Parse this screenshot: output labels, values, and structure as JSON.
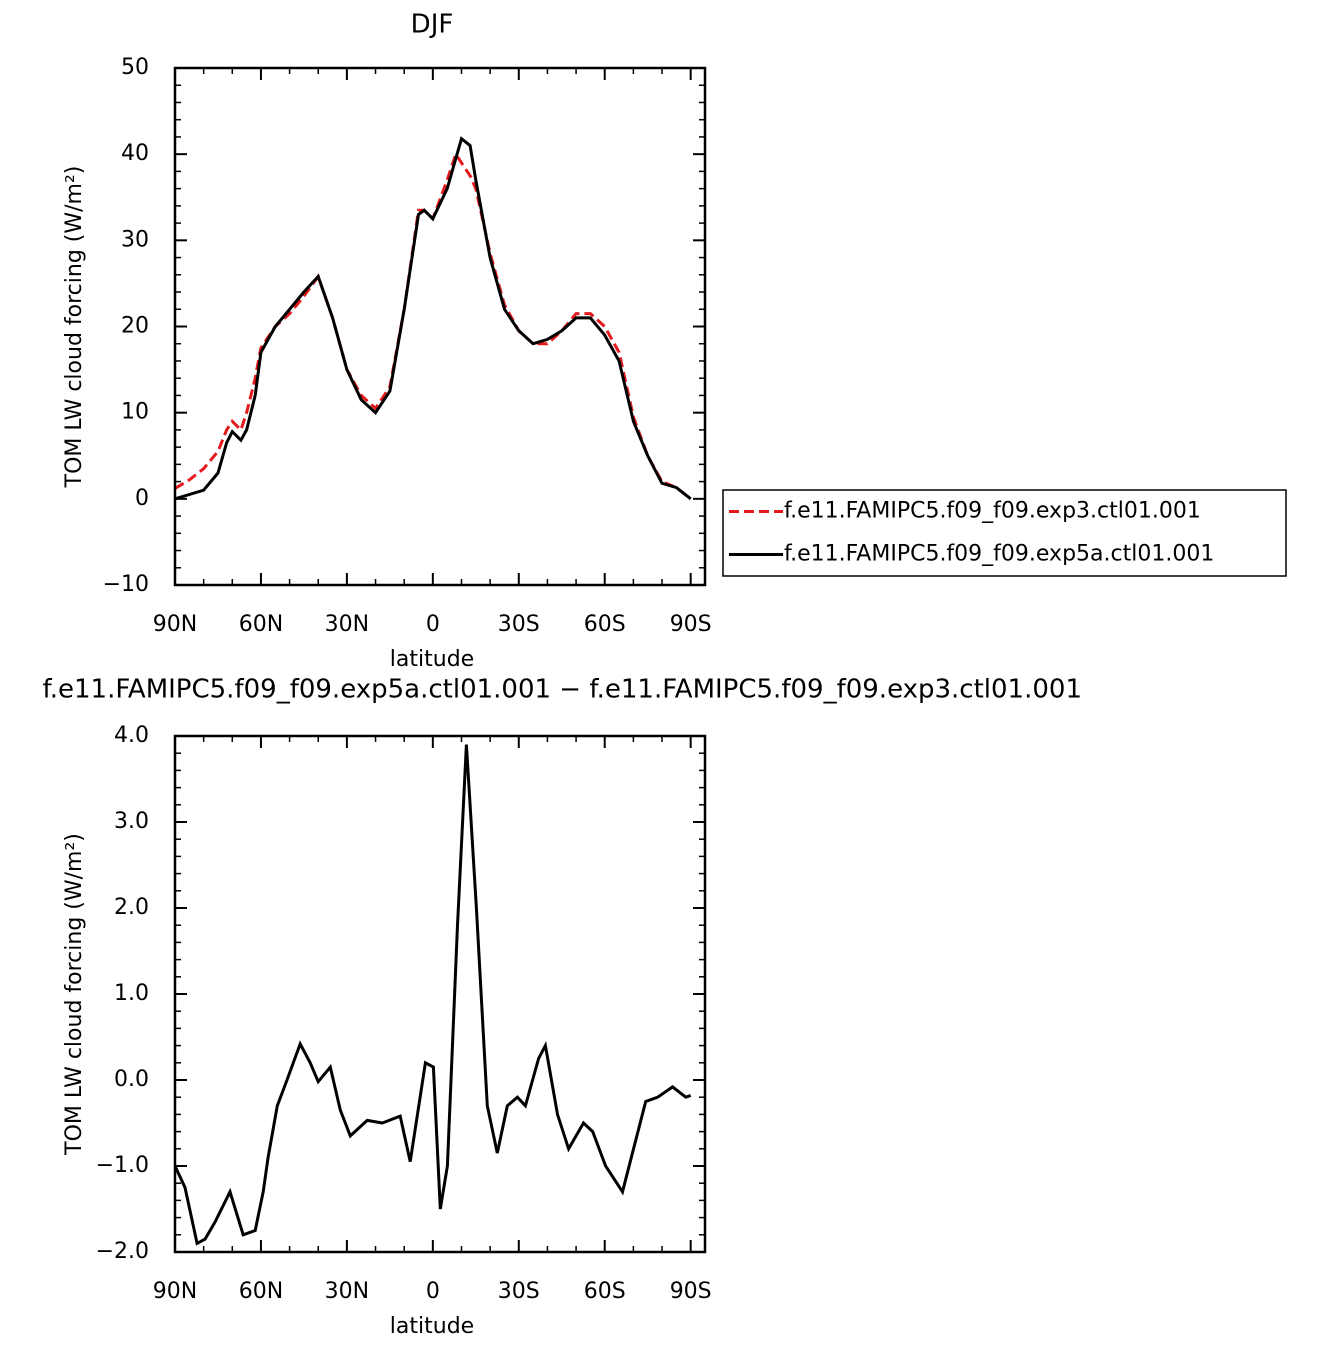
{
  "chart_data": [
    {
      "type": "line",
      "title": "DJF",
      "xlabel": "latitude",
      "ylabel": "TOM LW cloud forcing (W/m²)",
      "xlim": [
        90,
        -95
      ],
      "ylim": [
        -10,
        50
      ],
      "xticks": [
        {
          "value": 90,
          "label": "90N"
        },
        {
          "value": 60,
          "label": "60N"
        },
        {
          "value": 30,
          "label": "30N"
        },
        0,
        {
          "value": -30,
          "label": "30S"
        },
        {
          "value": -60,
          "label": "60S"
        },
        {
          "value": -90,
          "label": "90S"
        }
      ],
      "yticks": [
        {
          "value": -10,
          "label": "−10"
        },
        0,
        10,
        20,
        30,
        40,
        50
      ],
      "legend": "right",
      "x": [
        90,
        85,
        80,
        75,
        72,
        70,
        67,
        65,
        62,
        60,
        55,
        50,
        45,
        40,
        35,
        30,
        25,
        20,
        15,
        10,
        5,
        3,
        0,
        -5,
        -8,
        -10,
        -13,
        -15,
        -20,
        -25,
        -30,
        -35,
        -40,
        -45,
        -50,
        -55,
        -60,
        -65,
        -70,
        -75,
        -80,
        -85,
        -90
      ],
      "series": [
        {
          "name": "f.e11.FAMIPC5.f09_f09.exp3.ctl01.001",
          "color": "#e41a1c",
          "dash": "dashed",
          "values": [
            1.2,
            2.2,
            3.5,
            5.5,
            8,
            9,
            8,
            10,
            14,
            17.5,
            20,
            21.5,
            23.5,
            25.8,
            21,
            15,
            12,
            10.5,
            13,
            22,
            33.5,
            33.5,
            32.5,
            37,
            40,
            39,
            37.5,
            36,
            28.5,
            22.5,
            19.5,
            18,
            18,
            19.5,
            21.5,
            21.5,
            20,
            17,
            9.5,
            5,
            2,
            1.3,
            0
          ]
        },
        {
          "name": "f.e11.FAMIPC5.f09_f09.exp5a.ctl01.001",
          "color": "#000000",
          "dash": "solid",
          "values": [
            0,
            0.5,
            1,
            3,
            6.5,
            7.8,
            6.8,
            8,
            12,
            17,
            20,
            22,
            24,
            25.8,
            21,
            15,
            11.5,
            10,
            12.5,
            22,
            33,
            33.5,
            32.5,
            36,
            39.5,
            41.8,
            41,
            37,
            28,
            22,
            19.5,
            18,
            18.5,
            19.5,
            21,
            21,
            19,
            16,
            9,
            5,
            1.8,
            1.3,
            0
          ]
        }
      ]
    },
    {
      "type": "line",
      "title": "f.e11.FAMIPC5.f09_f09.exp5a.ctl01.001 − f.e11.FAMIPC5.f09_f09.exp3.ctl01.001",
      "xlabel": "latitude",
      "ylabel": "TOM LW cloud forcing (W/m²)",
      "xlim": [
        90,
        -95
      ],
      "ylim": [
        -2,
        4
      ],
      "xticks": [
        {
          "value": 90,
          "label": "90N"
        },
        {
          "value": 60,
          "label": "60N"
        },
        {
          "value": 30,
          "label": "30N"
        },
        0,
        {
          "value": -30,
          "label": "30S"
        },
        {
          "value": -60,
          "label": "60S"
        },
        {
          "value": -90,
          "label": "90S"
        }
      ],
      "yticks": [
        {
          "value": -2,
          "label": "−2.0"
        },
        {
          "value": -1,
          "label": "−1.0"
        },
        {
          "value": 0,
          "label": "0.0"
        },
        {
          "value": 1,
          "label": "1.0"
        },
        {
          "value": 2,
          "label": "2.0"
        },
        {
          "value": 3,
          "label": "3.0"
        },
        {
          "value": 4,
          "label": "4.0"
        }
      ],
      "color": "#000000",
      "x": [
        90,
        86.5,
        82.3,
        79.5,
        76,
        70.8,
        66.2,
        62,
        59.2,
        57.5,
        54.3,
        50.9,
        46.3,
        42.8,
        40,
        35.8,
        32.3,
        28.8,
        22.9,
        17.6,
        11.4,
        7.9,
        2.6,
        -0.2,
        -2.6,
        -5.1,
        -8.6,
        -11.7,
        -15.2,
        -19,
        -22.5,
        -26,
        -29.5,
        -32.3,
        -36.9,
        -39.3,
        -43.5,
        -47.4,
        -52.6,
        -55.8,
        -60.3,
        -66.2,
        -74.3,
        -78.5,
        -83.7,
        -88.3,
        -90
      ],
      "values": [
        -1.0,
        -1.25,
        -1.9,
        -1.85,
        -1.65,
        -1.3,
        -1.8,
        -1.75,
        -1.3,
        -0.9,
        -0.3,
        0.0,
        0.42,
        0.2,
        -0.02,
        0.15,
        -0.35,
        -0.65,
        -0.47,
        -0.5,
        -0.42,
        -0.95,
        0.2,
        0.15,
        -1.5,
        -1.0,
        1.8,
        3.9,
        2.0,
        -0.3,
        -0.85,
        -0.3,
        -0.2,
        -0.3,
        0.25,
        0.4,
        -0.4,
        -0.8,
        -0.5,
        -0.6,
        -1.0,
        -1.3,
        -0.25,
        -0.2,
        -0.08,
        -0.2,
        -0.18
      ]
    }
  ]
}
